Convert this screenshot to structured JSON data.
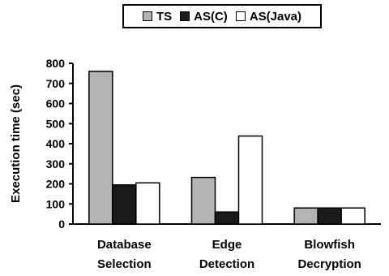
{
  "chart_data": {
    "type": "bar",
    "title": "",
    "xlabel": "",
    "ylabel": "Execution time (sec)",
    "ylim": [
      0,
      800
    ],
    "yticks": [
      0,
      100,
      200,
      300,
      400,
      500,
      600,
      700,
      800
    ],
    "categories": [
      [
        "Database",
        "Selection"
      ],
      [
        "Edge",
        "Detection"
      ],
      [
        "Blowfish",
        "Decryption"
      ]
    ],
    "series": [
      {
        "name": "TS",
        "color": "#b3b3b3",
        "values": [
          760,
          232,
          80
        ]
      },
      {
        "name": "AS(C)",
        "color": "#1a1a1a",
        "values": [
          195,
          60,
          80
        ]
      },
      {
        "name": "AS(Java)",
        "color": "#ffffff",
        "values": [
          205,
          438,
          80
        ]
      }
    ],
    "legend_position": "top",
    "grid": false
  }
}
